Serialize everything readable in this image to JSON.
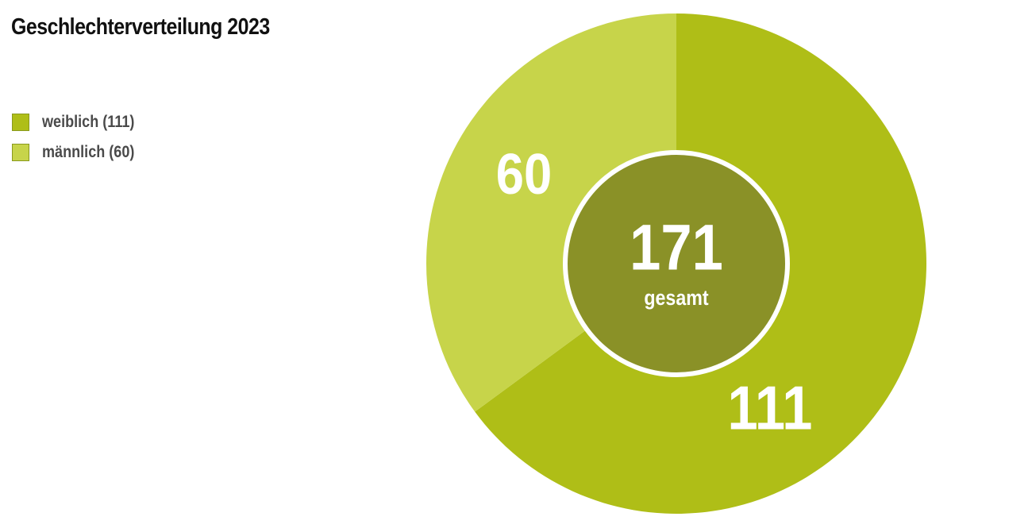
{
  "chart_data": {
    "type": "pie",
    "variant": "donut",
    "title": "Geschlechterverteilung 2023",
    "legend_position": "top-left",
    "total": {
      "value": "171",
      "label": "gesamt"
    },
    "slices": [
      {
        "name": "weiblich",
        "legend_label": "weiblich (111)",
        "value": 111,
        "data_label": "111",
        "color": "#afbe17"
      },
      {
        "name": "männlich",
        "legend_label": "männlich (60)",
        "value": 60,
        "data_label": "60",
        "color": "#c7d44a"
      }
    ],
    "center_color": "#8a9127",
    "separator_color": "#ffffff"
  }
}
